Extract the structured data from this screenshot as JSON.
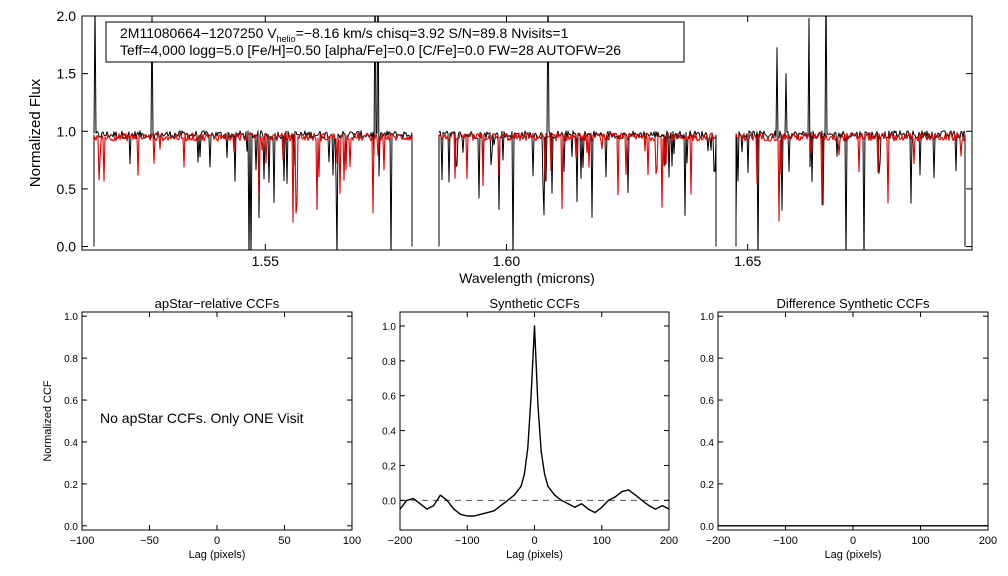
{
  "chart_data": [
    {
      "type": "line",
      "id": "spectrum",
      "title": "",
      "xlabel": "Wavelength (microns)",
      "ylabel": "Normalized Flux",
      "xlim": [
        1.512,
        1.6965
      ],
      "ylim": [
        -0.03,
        2.0
      ],
      "x_ticks": [
        1.55,
        1.6,
        1.65
      ],
      "x_tick_labels": [
        "1.55",
        "1.60",
        "1.65"
      ],
      "y_ticks": [
        0.0,
        0.5,
        1.0,
        1.5,
        2.0
      ],
      "y_tick_labels": [
        "0.0",
        "0.5",
        "1.0",
        "1.5",
        "2.0"
      ],
      "chips": [
        [
          1.5145,
          1.5805
        ],
        [
          1.586,
          1.6435
        ],
        [
          1.6475,
          1.695
        ]
      ],
      "series": [
        {
          "name": "observed spectrum",
          "color": "#000000",
          "continuum": 0.97
        },
        {
          "name": "best-fit synthetic",
          "color": "#e00000",
          "continuum": 0.95
        }
      ],
      "annotation": {
        "line1_prefix": "2M11080664−1207250  V",
        "line1_sub": "helio",
        "line1_suffix": "=−8.16 km/s  chisq=3.92  S/N=89.8  Nvisits=1",
        "line2": "Teff=4,000 logg=5.0 [Fe/H]=0.50 [alpha/Fe]=0.0 [C/Fe]=0.0 FW=28 AUTOFW=26"
      }
    },
    {
      "type": "line",
      "id": "apstar_ccf",
      "title": "apStar−relative CCFs",
      "xlabel": "Lag (pixels)",
      "ylabel": "Normalized CCF",
      "xlim": [
        -100,
        100
      ],
      "ylim": [
        -0.02,
        1.02
      ],
      "x_ticks": [
        -100,
        -50,
        0,
        50,
        100
      ],
      "x_tick_labels": [
        "−100",
        "−50",
        "0",
        "50",
        "100"
      ],
      "y_ticks": [
        0.0,
        0.2,
        0.4,
        0.6,
        0.8,
        1.0
      ],
      "y_tick_labels": [
        "0.0",
        "0.2",
        "0.4",
        "0.6",
        "0.8",
        "1.0"
      ],
      "message": "No apStar CCFs.  Only ONE Visit",
      "series": []
    },
    {
      "type": "line",
      "id": "synthetic_ccf",
      "title": "Synthetic CCFs",
      "xlabel": "Lag (pixels)",
      "ylabel": "",
      "xlim": [
        -200,
        200
      ],
      "ylim": [
        -0.17,
        1.08
      ],
      "x_ticks": [
        -200,
        -100,
        0,
        100,
        200
      ],
      "x_tick_labels": [
        "−200",
        "−100",
        "0",
        "100",
        "200"
      ],
      "y_ticks": [
        0.0,
        0.2,
        0.4,
        0.6,
        0.8,
        1.0
      ],
      "y_tick_labels": [
        "0.0",
        "0.2",
        "0.4",
        "0.6",
        "0.8",
        "1.0"
      ],
      "zero_line": 0.0,
      "series": [
        {
          "name": "CCF",
          "x": [
            -200,
            -190,
            -180,
            -170,
            -160,
            -150,
            -140,
            -130,
            -120,
            -110,
            -100,
            -90,
            -80,
            -70,
            -60,
            -50,
            -40,
            -30,
            -20,
            -15,
            -10,
            -5,
            0,
            5,
            10,
            15,
            20,
            30,
            40,
            50,
            60,
            70,
            80,
            90,
            100,
            110,
            120,
            130,
            140,
            150,
            160,
            170,
            180,
            190,
            200
          ],
          "y": [
            -0.05,
            0.0,
            0.01,
            -0.02,
            -0.05,
            -0.03,
            0.03,
            0.0,
            -0.05,
            -0.08,
            -0.09,
            -0.09,
            -0.08,
            -0.07,
            -0.06,
            -0.03,
            0.0,
            0.03,
            0.08,
            0.15,
            0.3,
            0.6,
            1.0,
            0.55,
            0.28,
            0.15,
            0.08,
            0.03,
            0.0,
            -0.02,
            -0.04,
            -0.02,
            -0.05,
            -0.07,
            -0.04,
            0.0,
            0.02,
            0.05,
            0.06,
            0.03,
            0.0,
            -0.03,
            -0.05,
            -0.03,
            -0.05
          ]
        }
      ]
    },
    {
      "type": "line",
      "id": "difference_ccf",
      "title": "Difference Synthetic CCFs",
      "xlabel": "Lag (pixels)",
      "ylabel": "",
      "xlim": [
        -200,
        200
      ],
      "ylim": [
        -0.02,
        1.02
      ],
      "x_ticks": [
        -200,
        -100,
        0,
        100,
        200
      ],
      "x_tick_labels": [
        "−200",
        "−100",
        "0",
        "100",
        "200"
      ],
      "y_ticks": [
        0.0,
        0.2,
        0.4,
        0.6,
        0.8,
        1.0
      ],
      "y_tick_labels": [
        "0.0",
        "0.2",
        "0.4",
        "0.6",
        "0.8",
        "1.0"
      ],
      "series": [
        {
          "name": "difference CCF",
          "x": [
            -200,
            200
          ],
          "y": [
            0.0,
            0.0
          ]
        }
      ]
    }
  ]
}
